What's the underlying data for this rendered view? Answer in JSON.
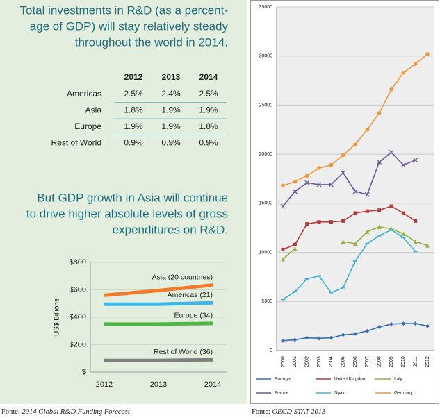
{
  "headline": [
    "Total investments in R&D (as a percent-",
    "age of GDP) will stay relatively steady",
    "throughout the world in 2014."
  ],
  "table": {
    "header": [
      "2012",
      "2013",
      "2014"
    ],
    "rows": [
      [
        "Americas",
        "2.5%",
        "2.4%",
        "2.5%"
      ],
      [
        "Asia",
        "1.8%",
        "1.9%",
        "1.9%"
      ],
      [
        "Europe",
        "1.9%",
        "1.9%",
        "1.8%"
      ],
      [
        "Rest of World",
        "0.9%",
        "0.9%",
        "0.9%"
      ]
    ]
  },
  "subhead": [
    "But GDP growth in Asia will continue",
    "to drive higher absolute levels of gross",
    "expenditures on R&D."
  ],
  "chart_data": [
    {
      "type": "line",
      "y_label": "US$ Billions",
      "categories": [
        "2012",
        "2013",
        "2014"
      ],
      "ylim": [
        0,
        800
      ],
      "yticks": [
        {
          "value": 0,
          "label": "$"
        },
        {
          "value": 200,
          "label": "$200"
        },
        {
          "value": 400,
          "label": "$400"
        },
        {
          "value": 600,
          "label": "$600"
        },
        {
          "value": 800,
          "label": "$800"
        }
      ],
      "grid": true,
      "series": [
        {
          "name": "Asia (20 countries)",
          "color": "#f07b2a",
          "values": [
            560,
            595,
            635
          ]
        },
        {
          "name": "Americas (21)",
          "color": "#3cb7e6",
          "values": [
            495,
            495,
            505
          ]
        },
        {
          "name": "Europe (34)",
          "color": "#4db848",
          "values": [
            350,
            350,
            355
          ]
        },
        {
          "name": "Rest of World (36)",
          "color": "#808080",
          "values": [
            85,
            85,
            90
          ]
        }
      ]
    },
    {
      "type": "line",
      "categories": [
        "2000",
        "2001",
        "2002",
        "2003",
        "2004",
        "2005",
        "2006",
        "2007",
        "2008",
        "2009",
        "2010",
        "2011",
        "2012"
      ],
      "ylim": [
        0,
        35000
      ],
      "yticks": [
        0,
        5000,
        10000,
        15000,
        20000,
        25000,
        30000,
        35000
      ],
      "grid": true,
      "series": [
        {
          "name": "Portugal",
          "color": "#3a6fb0",
          "marker": "diamond",
          "values": [
            1000,
            1100,
            1300,
            1250,
            1300,
            1600,
            1700,
            2000,
            2400,
            2700,
            2750,
            2750,
            2500
          ]
        },
        {
          "name": "United Kingdom",
          "color": "#b03a3a",
          "marker": "square",
          "values": [
            10300,
            10800,
            12900,
            13100,
            13100,
            13200,
            14000,
            14200,
            14300,
            14700,
            14000,
            13200,
            null
          ]
        },
        {
          "name": "Italy",
          "color": "#8fb040",
          "marker": "triangle",
          "values": [
            9300,
            10400,
            null,
            null,
            null,
            11100,
            10900,
            12100,
            12600,
            12400,
            11900,
            11100,
            10700
          ]
        },
        {
          "name": "France",
          "color": "#6a5a9a",
          "marker": "x",
          "values": [
            14700,
            16200,
            17100,
            16900,
            16900,
            18100,
            16200,
            15900,
            19200,
            20200,
            18900,
            19400,
            null
          ]
        },
        {
          "name": "Spain",
          "color": "#3cb3d0",
          "marker": "dash",
          "values": [
            5200,
            6000,
            7300,
            7600,
            5900,
            6400,
            9100,
            10900,
            11700,
            12300,
            11500,
            10100,
            null
          ]
        },
        {
          "name": "Germany",
          "color": "#f0963c",
          "marker": "circle",
          "values": [
            16800,
            17200,
            17800,
            18600,
            18900,
            19900,
            21000,
            22500,
            24200,
            26600,
            28300,
            29200,
            30200
          ]
        }
      ]
    }
  ],
  "sources": [
    {
      "prefix": "Fonte:",
      "title": "2014 Global R&D Funding Forecast"
    },
    {
      "prefix": "Fonte:",
      "title": "OECD STAT 2013"
    }
  ]
}
